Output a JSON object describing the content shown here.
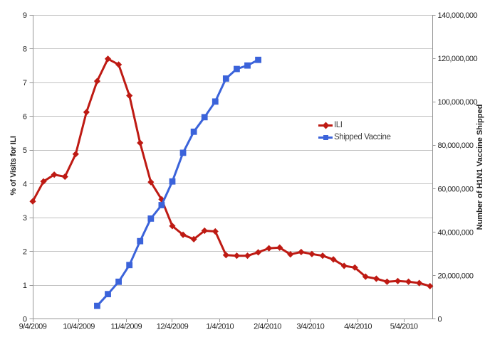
{
  "chart_data": {
    "type": "line",
    "title": "",
    "x_axis": {
      "kind": "date",
      "range_days": [
        0,
        260.5
      ],
      "ticks": [
        {
          "label": "9/4/2009",
          "day": 0
        },
        {
          "label": "10/4/2009",
          "day": 30
        },
        {
          "label": "11/4/2009",
          "day": 61
        },
        {
          "label": "12/4/2009",
          "day": 91
        },
        {
          "label": "1/4/2010",
          "day": 122
        },
        {
          "label": "2/4/2010",
          "day": 153
        },
        {
          "label": "3/4/2010",
          "day": 181
        },
        {
          "label": "4/4/2010",
          "day": 212
        },
        {
          "label": "5/4/2010",
          "day": 242
        }
      ]
    },
    "y_axis_left": {
      "title": "% of Visits for ILI",
      "range": [
        0,
        9
      ],
      "tick_step": 1,
      "tick_labels": [
        "0",
        "1",
        "2",
        "3",
        "4",
        "5",
        "6",
        "7",
        "8",
        "9"
      ]
    },
    "y_axis_right": {
      "title": "Number of H1N1 Vaccine Shipped",
      "range": [
        0,
        140000000
      ],
      "tick_step": 20000000,
      "tick_labels": [
        "0",
        "20,000,000",
        "40,000,000",
        "60,000,000",
        "80,000,000",
        "100,000,000",
        "120,000,000",
        "140,000,000"
      ]
    },
    "grid": {
      "horizontal": true,
      "vertical": false,
      "color": "#c1c1c1"
    },
    "axis_color": "#969696",
    "text_color": "#1f1f1f",
    "legend": {
      "position": "middle-right",
      "entries": [
        {
          "label": "ILI",
          "marker": "diamond"
        },
        {
          "label": "Shipped Vaccine",
          "marker": "square"
        }
      ]
    },
    "series": [
      {
        "name": "ILI",
        "axis": "left",
        "color": "#be1a13",
        "marker": "diamond",
        "cadence": "weekly",
        "first_point_label": "9/4/2009",
        "weeks": [
          0,
          1,
          2,
          3,
          4,
          5,
          6,
          7,
          8,
          9,
          10,
          11,
          12,
          13,
          14,
          15,
          16,
          17,
          18,
          19,
          20,
          21,
          22,
          23,
          24,
          25,
          26,
          27,
          28,
          29,
          30,
          31,
          32,
          33,
          34,
          35,
          36,
          37
        ],
        "values": [
          3.48,
          4.07,
          4.27,
          4.21,
          4.88,
          6.12,
          7.04,
          7.7,
          7.53,
          6.61,
          5.21,
          4.05,
          3.54,
          2.75,
          2.49,
          2.36,
          2.61,
          2.59,
          1.89,
          1.87,
          1.87,
          1.97,
          2.09,
          2.11,
          1.91,
          1.98,
          1.92,
          1.87,
          1.76,
          1.57,
          1.52,
          1.25,
          1.19,
          1.1,
          1.12,
          1.1,
          1.06,
          0.97
        ]
      },
      {
        "name": "Shipped Vaccine",
        "axis": "right",
        "color": "#3b63da",
        "marker": "square",
        "cadence": "weekly",
        "weeks": [
          6,
          7,
          8,
          9,
          10,
          11,
          12,
          13,
          14,
          15,
          16,
          17,
          18,
          19,
          20,
          21
        ],
        "values": [
          6000000,
          11400000,
          17100000,
          24800000,
          35800000,
          46200000,
          52400000,
          63300000,
          76500000,
          86200000,
          92900000,
          100100000,
          110700000,
          115100000,
          116700000,
          119300000
        ]
      }
    ]
  }
}
